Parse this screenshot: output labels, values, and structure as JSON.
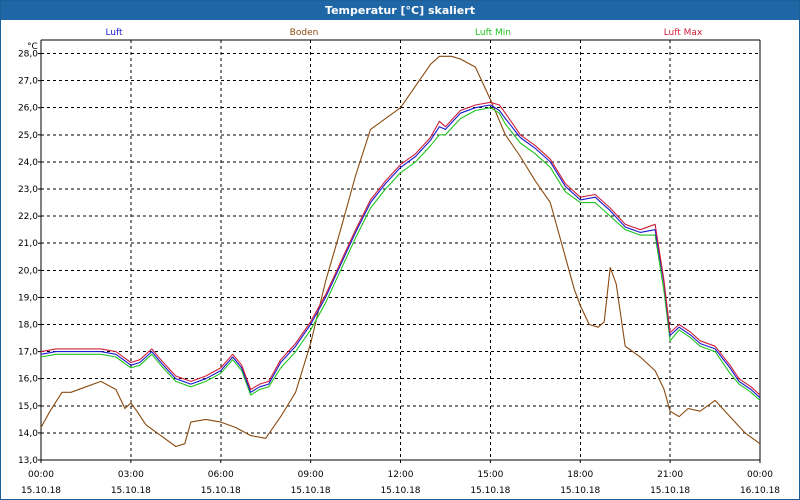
{
  "window": {
    "title": "Temperatur [°C] skaliert"
  },
  "colors": {
    "luft": "#1a1ad0",
    "boden": "#8b4a10",
    "luft_min": "#1fc41f",
    "luft_max": "#d01f3a",
    "grid": "#000000",
    "titlebar": "#1f66a6"
  },
  "chart_data": {
    "type": "line",
    "title": "Temperatur [°C] skaliert",
    "ylabel": "°C",
    "ylim": [
      13.0,
      28.5
    ],
    "xlim": [
      0,
      24
    ],
    "yticks": [
      13.0,
      14.0,
      15.0,
      16.0,
      17.0,
      18.0,
      19.0,
      20.0,
      21.0,
      22.0,
      23.0,
      24.0,
      25.0,
      26.0,
      27.0,
      28.0
    ],
    "ytick_labels": [
      "13,0",
      "14,0",
      "15,0",
      "16,0",
      "17,0",
      "18,0",
      "19,0",
      "20,0",
      "21,0",
      "22,0",
      "23,0",
      "24,0",
      "25,0",
      "26,0",
      "27,0",
      "28,0"
    ],
    "xticks": [
      0,
      3,
      6,
      9,
      12,
      15,
      18,
      21,
      24
    ],
    "xtick_times": [
      "00:00",
      "03:00",
      "06:00",
      "09:00",
      "12:00",
      "15:00",
      "18:00",
      "21:00",
      "00:00"
    ],
    "xtick_dates": [
      "15.10.18",
      "15.10.18",
      "15.10.18",
      "15.10.18",
      "15.10.18",
      "15.10.18",
      "15.10.18",
      "15.10.18",
      "16.10.18"
    ],
    "grid": true,
    "series": [
      {
        "name": "Luft",
        "color_key": "luft",
        "x": [
          0,
          0.5,
          1,
          1.5,
          2,
          2.5,
          3,
          3.3,
          3.7,
          4,
          4.5,
          5,
          5.5,
          6,
          6.4,
          6.7,
          7,
          7.3,
          7.6,
          8,
          8.5,
          9,
          9.5,
          10,
          10.5,
          11,
          11.5,
          12,
          12.5,
          13,
          13.3,
          13.5,
          14,
          14.5,
          15,
          15.3,
          15.5,
          16,
          16.5,
          17,
          17.5,
          18,
          18.5,
          19,
          19.5,
          20,
          20.5,
          20.8,
          21,
          21.3,
          21.7,
          22,
          22.5,
          23,
          23.3,
          23.7,
          24
        ],
        "y": [
          16.9,
          17.0,
          17.0,
          17.0,
          17.0,
          16.9,
          16.5,
          16.6,
          17.0,
          16.6,
          16.0,
          15.8,
          16.0,
          16.3,
          16.8,
          16.4,
          15.5,
          15.7,
          15.8,
          16.6,
          17.2,
          18.0,
          19.0,
          20.2,
          21.4,
          22.5,
          23.2,
          23.8,
          24.2,
          24.8,
          25.3,
          25.2,
          25.8,
          26.0,
          26.1,
          25.9,
          25.6,
          24.9,
          24.5,
          24.0,
          23.1,
          22.6,
          22.7,
          22.2,
          21.6,
          21.4,
          21.5,
          19.5,
          17.6,
          17.9,
          17.6,
          17.3,
          17.1,
          16.4,
          15.9,
          15.6,
          15.3
        ]
      },
      {
        "name": "Boden",
        "color_key": "boden",
        "x": [
          0,
          0.3,
          0.7,
          1,
          1.5,
          2,
          2.5,
          2.8,
          3,
          3.2,
          3.5,
          4,
          4.5,
          4.8,
          5,
          5.5,
          6,
          6.5,
          7,
          7.5,
          8,
          8.5,
          9,
          9.5,
          10,
          10.5,
          11,
          11.5,
          12,
          12.5,
          13,
          13.3,
          13.7,
          14,
          14.5,
          15,
          15.5,
          16,
          16.5,
          17,
          17.5,
          17.8,
          18,
          18.3,
          18.6,
          18.8,
          19,
          19.2,
          19.5,
          20,
          20.5,
          20.8,
          21,
          21.3,
          21.6,
          22,
          22.5,
          23,
          23.5,
          24
        ],
        "y": [
          14.2,
          14.8,
          15.5,
          15.5,
          15.7,
          15.9,
          15.6,
          14.9,
          15.1,
          14.8,
          14.3,
          13.9,
          13.5,
          13.6,
          14.4,
          14.5,
          14.4,
          14.2,
          13.9,
          13.8,
          14.6,
          15.5,
          17.3,
          19.6,
          21.5,
          23.5,
          25.2,
          25.6,
          26.0,
          26.8,
          27.6,
          27.9,
          27.9,
          27.8,
          27.5,
          26.3,
          25.0,
          24.2,
          23.3,
          22.5,
          20.5,
          19.3,
          18.7,
          18.0,
          17.9,
          18.1,
          20.1,
          19.5,
          17.2,
          16.8,
          16.3,
          15.6,
          14.8,
          14.6,
          14.9,
          14.8,
          15.2,
          14.6,
          14.0,
          13.6
        ]
      },
      {
        "name": "Luft Min",
        "color_key": "luft_min",
        "x": [
          0,
          0.5,
          1,
          1.5,
          2,
          2.5,
          3,
          3.3,
          3.7,
          4,
          4.5,
          5,
          5.5,
          6,
          6.4,
          6.7,
          7,
          7.3,
          7.6,
          8,
          8.5,
          9,
          9.5,
          10,
          10.5,
          11,
          11.5,
          12,
          12.5,
          13,
          13.3,
          13.5,
          14,
          14.5,
          15,
          15.3,
          15.5,
          16,
          16.5,
          17,
          17.5,
          18,
          18.5,
          19,
          19.5,
          20,
          20.5,
          20.8,
          21,
          21.3,
          21.7,
          22,
          22.5,
          23,
          23.3,
          23.7,
          24
        ],
        "y": [
          16.8,
          16.9,
          16.9,
          16.9,
          16.9,
          16.8,
          16.4,
          16.5,
          16.9,
          16.5,
          15.9,
          15.7,
          15.9,
          16.2,
          16.7,
          16.3,
          15.4,
          15.6,
          15.7,
          16.4,
          17.0,
          17.8,
          18.8,
          20.0,
          21.2,
          22.3,
          23.0,
          23.6,
          24.0,
          24.6,
          25.0,
          25.0,
          25.6,
          25.9,
          26.0,
          25.8,
          25.4,
          24.7,
          24.3,
          23.8,
          22.9,
          22.5,
          22.5,
          22.0,
          21.5,
          21.3,
          21.3,
          19.2,
          17.4,
          17.8,
          17.5,
          17.2,
          17.0,
          16.2,
          15.8,
          15.5,
          15.2
        ]
      },
      {
        "name": "Luft Max",
        "color_key": "luft_max",
        "x": [
          0,
          0.5,
          1,
          1.5,
          2,
          2.5,
          3,
          3.3,
          3.7,
          4,
          4.5,
          5,
          5.5,
          6,
          6.4,
          6.7,
          7,
          7.3,
          7.6,
          8,
          8.5,
          9,
          9.5,
          10,
          10.5,
          11,
          11.5,
          12,
          12.5,
          13,
          13.3,
          13.5,
          14,
          14.5,
          15,
          15.3,
          15.5,
          16,
          16.5,
          17,
          17.5,
          18,
          18.5,
          19,
          19.5,
          20,
          20.5,
          20.8,
          21,
          21.3,
          21.7,
          22,
          22.5,
          23,
          23.3,
          23.7,
          24
        ],
        "y": [
          17.0,
          17.1,
          17.1,
          17.1,
          17.1,
          17.0,
          16.6,
          16.7,
          17.1,
          16.7,
          16.1,
          15.9,
          16.1,
          16.4,
          16.9,
          16.5,
          15.6,
          15.8,
          15.9,
          16.7,
          17.3,
          18.1,
          19.1,
          20.3,
          21.5,
          22.6,
          23.3,
          23.9,
          24.3,
          24.9,
          25.5,
          25.3,
          25.9,
          26.1,
          26.2,
          26.1,
          25.8,
          25.0,
          24.6,
          24.1,
          23.2,
          22.7,
          22.8,
          22.3,
          21.7,
          21.5,
          21.7,
          19.6,
          17.7,
          18.0,
          17.7,
          17.4,
          17.2,
          16.5,
          16.0,
          15.7,
          15.4
        ]
      }
    ]
  }
}
